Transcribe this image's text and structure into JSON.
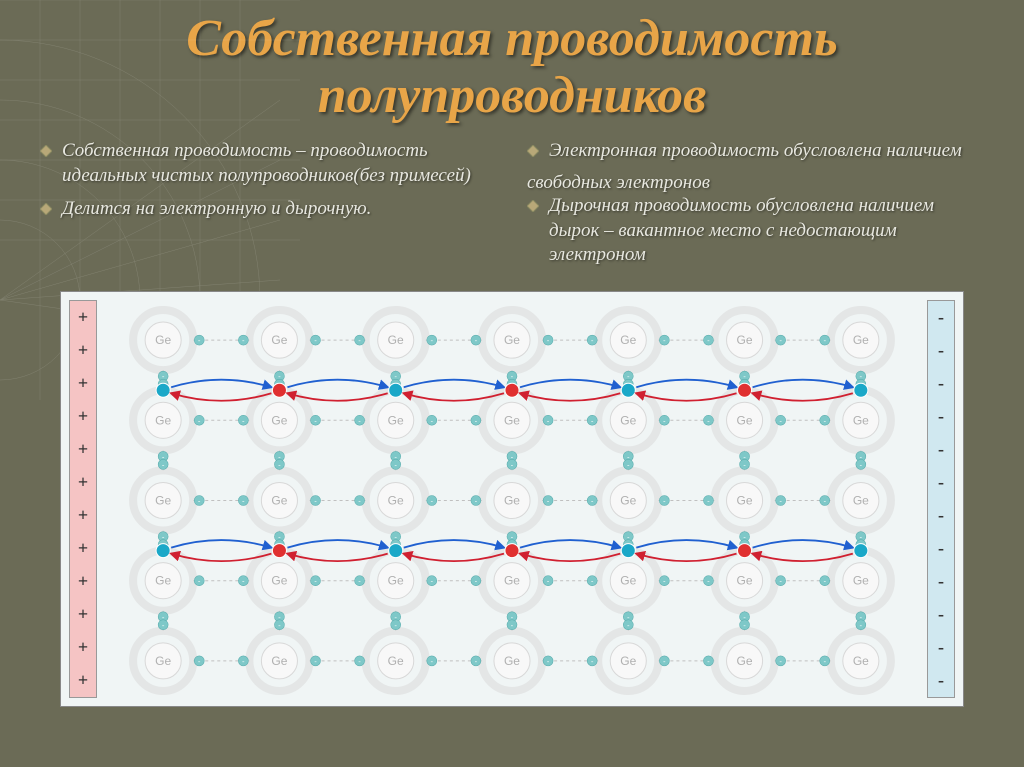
{
  "title": "Собственная проводимость полупроводников",
  "title_color": "#e8a548",
  "background_color": "#6b6b56",
  "left_bullets": [
    "Собственная проводимость – проводимость идеальных чистых полупроводников(без примесей)",
    "Делится на электронную и дырочную."
  ],
  "right_bullets": [
    "Электронная проводимость обусловлена наличием",
    "Дырочная проводимость обусловлена наличием дырок – вакантное место с недостающим электроном"
  ],
  "right_subtext": "свободных электронов",
  "bullet_fill": "#b8a878",
  "bullet_stroke": "#888860",
  "text_color": "#e8e8e0",
  "diagram": {
    "bg": "#f0f5f5",
    "plate_pos_bg": "#f5c4c4",
    "plate_neg_bg": "#d0e8f0",
    "plate_pos_symbol": "+",
    "plate_neg_symbol": "-",
    "plate_symbol_count": 12,
    "lattice": {
      "rows": 5,
      "cols": 7,
      "atom_label": "Ge",
      "atom_label_color": "#b0b0b0",
      "atom_ring_color": "#d8d8d8",
      "atom_outer_r": 30,
      "atom_inner_r": 18,
      "electron_color": "#7ec8c8",
      "electron_r": 5,
      "bond_color": "#c0c0c0",
      "active_rows": [
        1,
        3
      ],
      "free_electron_color": "#1aa8c8",
      "hole_color": "#e03030",
      "arrow_blue": "#2060d0",
      "arrow_red": "#d02030"
    }
  }
}
